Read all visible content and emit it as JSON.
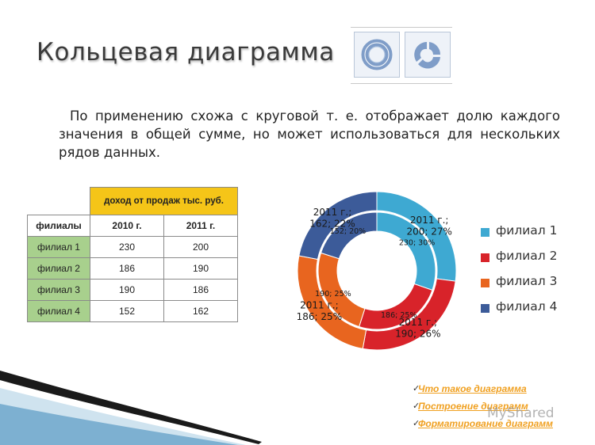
{
  "slide": {
    "title": "Кольцевая диаграмма",
    "description": "По применению схожа с круговой т. е. отображает долю каждого значения в общей сумме, но может использоваться для нескольких рядов данных.",
    "icons": [
      "doughnut-icon",
      "exploded-doughnut-icon"
    ],
    "watermark": "MyShared"
  },
  "table": {
    "header": "доход от продаж тыс. руб.",
    "columns": [
      "филиалы",
      "2010 г.",
      "2011 г."
    ],
    "rows": [
      [
        "филиал 1",
        "230",
        "200"
      ],
      [
        "филиал 2",
        "186",
        "190"
      ],
      [
        "филиал 3",
        "190",
        "186"
      ],
      [
        "филиал 4",
        "152",
        "162"
      ]
    ]
  },
  "chart_data": {
    "type": "doughnut",
    "categories": [
      "филиал 1",
      "филиал 2",
      "филиал 3",
      "филиал 4"
    ],
    "colors": [
      "#3ea9d2",
      "#d8232a",
      "#e8651f",
      "#3c5b99"
    ],
    "series": [
      {
        "values": [
          230,
          186,
          190,
          152
        ],
        "data_labels": [
          "230; 30%",
          "186; 25%",
          "190; 25%",
          "152; 20%"
        ]
      },
      {
        "values": [
          200,
          190,
          186,
          162
        ],
        "data_labels": [
          "2011 г.; 200; 27%",
          "2011 г.; 190; 26%",
          "2011 г.; 186; 25%",
          "2011 г.; 162; 22%"
        ]
      }
    ],
    "legend": [
      "филиал 1",
      "филиал 2",
      "филиал 3",
      "филиал 4"
    ],
    "legend_position": "right"
  },
  "links": [
    "Что такое диаграмма",
    "Построение диаграмм",
    "Форматирование диаграмм"
  ]
}
